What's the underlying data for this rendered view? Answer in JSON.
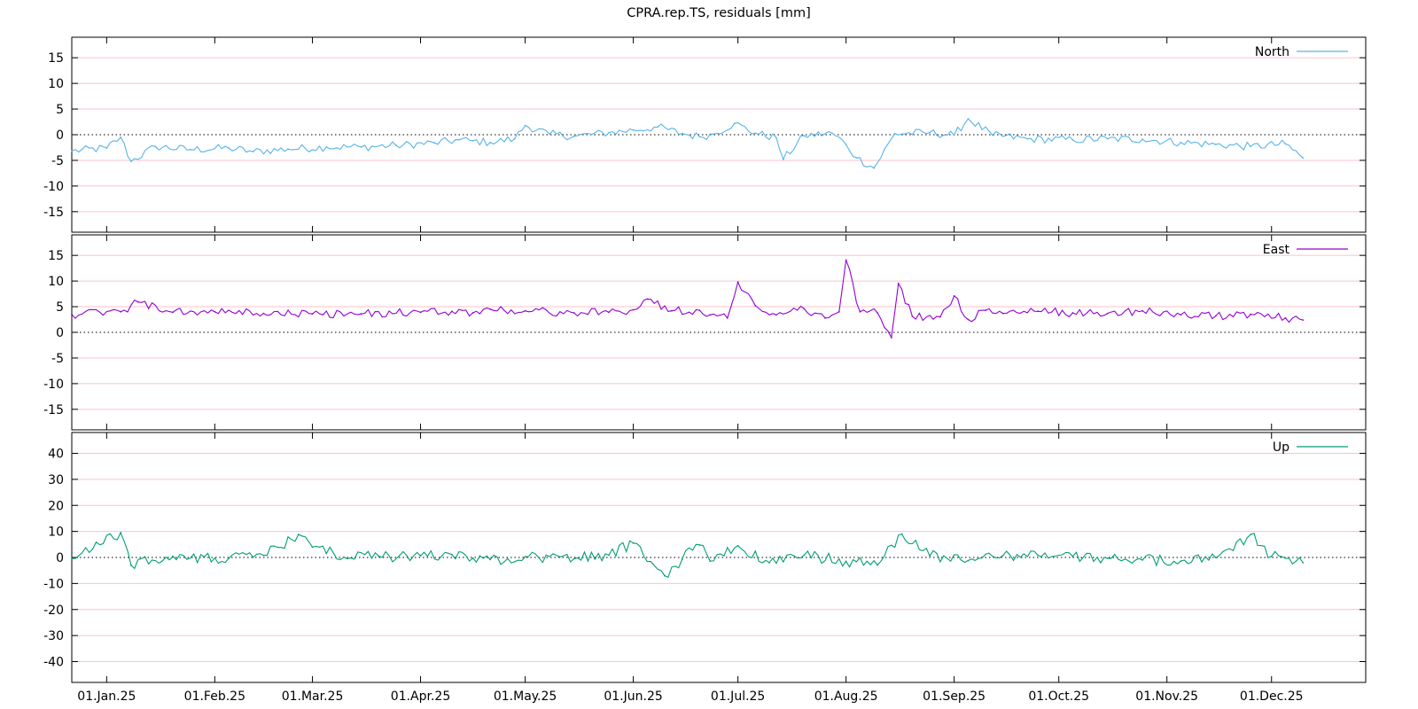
{
  "chart_data": {
    "type": "line",
    "title": "CPRA.rep.TS, residuals [mm]",
    "x_range": [
      "2024-12-22",
      "2025-12-28"
    ],
    "x_ticks": [
      {
        "date": "2025-01-01",
        "label": "01.Jan.25"
      },
      {
        "date": "2025-02-01",
        "label": "01.Feb.25"
      },
      {
        "date": "2025-03-01",
        "label": "01.Mar.25"
      },
      {
        "date": "2025-04-01",
        "label": "01.Apr.25"
      },
      {
        "date": "2025-05-01",
        "label": "01.May.25"
      },
      {
        "date": "2025-06-01",
        "label": "01.Jun.25"
      },
      {
        "date": "2025-07-01",
        "label": "01.Jul.25"
      },
      {
        "date": "2025-08-01",
        "label": "01.Aug.25"
      },
      {
        "date": "2025-09-01",
        "label": "01.Sep.25"
      },
      {
        "date": "2025-10-01",
        "label": "01.Oct.25"
      },
      {
        "date": "2025-11-01",
        "label": "01.Nov.25"
      },
      {
        "date": "2025-12-01",
        "label": "01.Dec.25"
      }
    ],
    "grid": "horizontal reference lines at labelled y ticks (pink), dotted zero line",
    "legend_position": "top-right",
    "panels": [
      {
        "name": "North",
        "color": "#56b4e9",
        "ylim": [
          -19,
          19
        ],
        "yticks": [
          15,
          10,
          5,
          0,
          -5,
          -10,
          -15
        ],
        "points": [
          [
            "2024-12-22",
            -3.2
          ],
          [
            "2025-01-01",
            -2.6
          ],
          [
            "2025-01-05",
            -0.5
          ],
          [
            "2025-01-08",
            -5.2
          ],
          [
            "2025-01-15",
            -2.3
          ],
          [
            "2025-01-25",
            -2.9
          ],
          [
            "2025-02-05",
            -2.6
          ],
          [
            "2025-02-12",
            -3.3
          ],
          [
            "2025-02-22",
            -2.8
          ],
          [
            "2025-03-05",
            -2.4
          ],
          [
            "2025-03-15",
            -2.4
          ],
          [
            "2025-03-25",
            -2.1
          ],
          [
            "2025-04-05",
            -1.6
          ],
          [
            "2025-04-12",
            -1.0
          ],
          [
            "2025-04-16",
            -1.2
          ],
          [
            "2025-04-21",
            -1.5
          ],
          [
            "2025-04-28",
            -0.8
          ],
          [
            "2025-05-01",
            1.8
          ],
          [
            "2025-05-08",
            0.1
          ],
          [
            "2025-05-15",
            -0.3
          ],
          [
            "2025-05-25",
            0.4
          ],
          [
            "2025-06-01",
            0.9
          ],
          [
            "2025-06-08",
            1.5
          ],
          [
            "2025-06-15",
            0.2
          ],
          [
            "2025-06-20",
            -0.4
          ],
          [
            "2025-06-24",
            0.1
          ],
          [
            "2025-06-30",
            2.2
          ],
          [
            "2025-07-06",
            0.3
          ],
          [
            "2025-07-12",
            -0.6
          ],
          [
            "2025-07-14",
            -4.8
          ],
          [
            "2025-07-20",
            -0.2
          ],
          [
            "2025-07-28",
            0.3
          ],
          [
            "2025-08-01",
            -1.9
          ],
          [
            "2025-08-04",
            -4.5
          ],
          [
            "2025-08-09",
            -6.5
          ],
          [
            "2025-08-15",
            0.2
          ],
          [
            "2025-08-25",
            0.4
          ],
          [
            "2025-09-01",
            -0.1
          ],
          [
            "2025-09-05",
            3.1
          ],
          [
            "2025-09-12",
            -0.1
          ],
          [
            "2025-09-22",
            -0.8
          ],
          [
            "2025-10-05",
            -1.0
          ],
          [
            "2025-10-15",
            -0.8
          ],
          [
            "2025-10-25",
            -0.9
          ],
          [
            "2025-11-05",
            -1.5
          ],
          [
            "2025-11-15",
            -1.9
          ],
          [
            "2025-11-25",
            -2.3
          ],
          [
            "2025-12-05",
            -1.8
          ],
          [
            "2025-12-10",
            -4.5
          ]
        ]
      },
      {
        "name": "East",
        "color": "#9400d3",
        "ylim": [
          -19,
          19
        ],
        "yticks": [
          15,
          10,
          5,
          0,
          -5,
          -10,
          -15
        ],
        "points": [
          [
            "2024-12-22",
            3.5
          ],
          [
            "2025-01-05",
            4.0
          ],
          [
            "2025-01-10",
            5.9
          ],
          [
            "2025-01-20",
            3.9
          ],
          [
            "2025-02-01",
            4.0
          ],
          [
            "2025-02-15",
            3.7
          ],
          [
            "2025-03-01",
            3.6
          ],
          [
            "2025-03-15",
            3.6
          ],
          [
            "2025-04-01",
            3.9
          ],
          [
            "2025-04-10",
            4.1
          ],
          [
            "2025-04-16",
            3.8
          ],
          [
            "2025-04-21",
            4.5
          ],
          [
            "2025-05-01",
            4.2
          ],
          [
            "2025-05-15",
            3.8
          ],
          [
            "2025-05-25",
            3.9
          ],
          [
            "2025-06-01",
            4.4
          ],
          [
            "2025-06-05",
            6.5
          ],
          [
            "2025-06-12",
            4.2
          ],
          [
            "2025-06-20",
            4.3
          ],
          [
            "2025-06-23",
            3.4
          ],
          [
            "2025-06-28",
            2.8
          ],
          [
            "2025-07-01",
            9.8
          ],
          [
            "2025-07-06",
            5.2
          ],
          [
            "2025-07-12",
            3.4
          ],
          [
            "2025-07-20",
            4.6
          ],
          [
            "2025-07-26",
            2.8
          ],
          [
            "2025-07-30",
            4.0
          ],
          [
            "2025-08-01",
            14.1
          ],
          [
            "2025-08-05",
            4.0
          ],
          [
            "2025-08-10",
            3.8
          ],
          [
            "2025-08-14",
            -1.0
          ],
          [
            "2025-08-16",
            9.5
          ],
          [
            "2025-08-20",
            3.1
          ],
          [
            "2025-08-28",
            3.0
          ],
          [
            "2025-09-01",
            7.1
          ],
          [
            "2025-09-05",
            2.5
          ],
          [
            "2025-09-10",
            4.3
          ],
          [
            "2025-09-15",
            3.7
          ],
          [
            "2025-09-25",
            4.1
          ],
          [
            "2025-10-05",
            3.8
          ],
          [
            "2025-10-15",
            3.7
          ],
          [
            "2025-10-25",
            4.2
          ],
          [
            "2025-11-05",
            3.4
          ],
          [
            "2025-11-15",
            3.2
          ],
          [
            "2025-11-25",
            3.5
          ],
          [
            "2025-12-05",
            2.8
          ],
          [
            "2025-12-10",
            2.4
          ]
        ]
      },
      {
        "name": "Up",
        "color": "#009e73",
        "ylim": [
          -48,
          48
        ],
        "yticks": [
          40,
          30,
          20,
          10,
          0,
          -10,
          -20,
          -30,
          -40
        ],
        "points": [
          [
            "2024-12-22",
            -0.5
          ],
          [
            "2025-01-05",
            9.5
          ],
          [
            "2025-01-08",
            -3.0
          ],
          [
            "2025-01-20",
            0.4
          ],
          [
            "2025-02-05",
            -0.3
          ],
          [
            "2025-02-15",
            0.8
          ],
          [
            "2025-02-25",
            8.8
          ],
          [
            "2025-03-01",
            4.0
          ],
          [
            "2025-03-10",
            0.1
          ],
          [
            "2025-03-20",
            0.5
          ],
          [
            "2025-04-01",
            0.6
          ],
          [
            "2025-04-10",
            1.1
          ],
          [
            "2025-04-16",
            -0.3
          ],
          [
            "2025-04-21",
            -0.8
          ],
          [
            "2025-05-01",
            0.3
          ],
          [
            "2025-05-15",
            -0.5
          ],
          [
            "2025-05-25",
            0.9
          ],
          [
            "2025-06-01",
            5.5
          ],
          [
            "2025-06-10",
            -7.0
          ],
          [
            "2025-06-15",
            -0.7
          ],
          [
            "2025-06-20",
            4.8
          ],
          [
            "2025-06-23",
            -1.4
          ],
          [
            "2025-07-01",
            4.5
          ],
          [
            "2025-07-10",
            -2.0
          ],
          [
            "2025-07-20",
            0.9
          ],
          [
            "2025-08-01",
            -1.5
          ],
          [
            "2025-08-10",
            -2.9
          ],
          [
            "2025-08-17",
            9.0
          ],
          [
            "2025-08-25",
            0.6
          ],
          [
            "2025-09-05",
            -1.2
          ],
          [
            "2025-09-15",
            0.7
          ],
          [
            "2025-09-25",
            0.8
          ],
          [
            "2025-10-05",
            0.4
          ],
          [
            "2025-10-15",
            -0.3
          ],
          [
            "2025-10-25",
            -1.0
          ],
          [
            "2025-11-05",
            -1.4
          ],
          [
            "2025-11-15",
            -0.1
          ],
          [
            "2025-11-25",
            8.8
          ],
          [
            "2025-12-01",
            0.4
          ],
          [
            "2025-12-10",
            -2.0
          ]
        ]
      }
    ]
  }
}
